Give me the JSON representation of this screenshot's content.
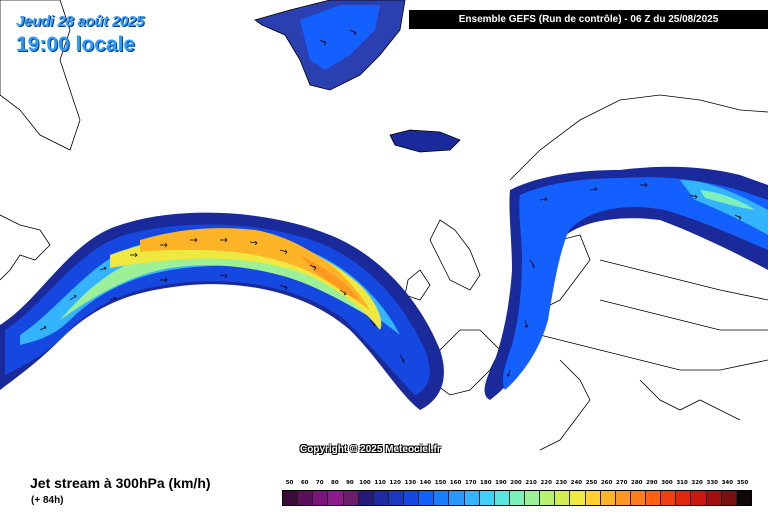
{
  "header": {
    "date": "Jeudi 28 août 2025",
    "local_time": "19:00 locale",
    "run_info": "Ensemble GEFS  (Run de contrôle)  -  06 Z du 25/08/2025"
  },
  "copyright": "Copyright © 2025 Meteociel.fr",
  "footer": {
    "title": "Jet stream à 300hPa (km/h)",
    "lead": "(+ 84h)"
  },
  "legend": {
    "values": [
      "50",
      "60",
      "70",
      "80",
      "90",
      "100",
      "110",
      "120",
      "130",
      "140",
      "150",
      "160",
      "170",
      "180",
      "190",
      "200",
      "210",
      "220",
      "230",
      "240",
      "250",
      "260",
      "270",
      "280",
      "290",
      "300",
      "310",
      "320",
      "330",
      "340",
      "350"
    ],
    "colors": [
      "#3b0a3b",
      "#5a0f5a",
      "#7a1478",
      "#8e1a8c",
      "#6a1e6a",
      "#241a7a",
      "#1e2aa0",
      "#1a38c0",
      "#1448e0",
      "#1060ff",
      "#1a7cff",
      "#2898ff",
      "#34b4ff",
      "#40d0f8",
      "#58e6e0",
      "#7cf0b8",
      "#9cf098",
      "#b8f070",
      "#d4ee50",
      "#eee840",
      "#ffd030",
      "#ffb428",
      "#ff9820",
      "#ff7c18",
      "#ff6014",
      "#f04010",
      "#e0280c",
      "#c81810",
      "#a01010",
      "#781010",
      "#100808"
    ]
  },
  "colors": {
    "ocean": "#ffffff",
    "coast": "#000000",
    "jet_edge": "#1a2a9a"
  }
}
